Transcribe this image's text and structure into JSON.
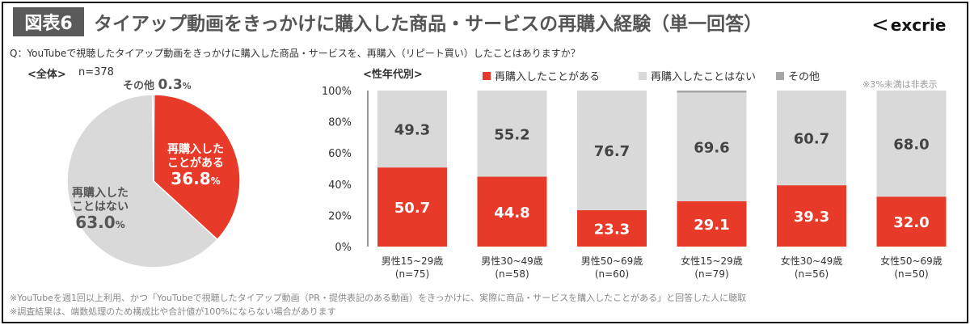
{
  "header": {
    "figure_label": "図表6",
    "title": "タイアップ動画をきっかけに購入した商品・サービスの再購入経験（単一回答）",
    "logo": "excrie"
  },
  "question": "Q：YouTubeで視聴したタイアップ動画をきっかけに購入した商品・サービスを、再購入（リピート買い）したことはありますか？",
  "colors": {
    "repurchased": "#e83a29",
    "not_repurchased": "#d9d9d9",
    "other": "#a6a6a6"
  },
  "chart_data": [
    {
      "type": "pie",
      "title": "<全体>",
      "n_label": "n=378",
      "slices": [
        {
          "name": "再購入したことがある",
          "label_lines": [
            "再購入した",
            "ことがある"
          ],
          "value": 36.8,
          "value_label": "36.8",
          "unit": "%"
        },
        {
          "name": "再購入したことはない",
          "label_lines": [
            "再購入した",
            "ことはない"
          ],
          "value": 63.0,
          "value_label": "63.0",
          "unit": "%"
        },
        {
          "name": "その他",
          "label_lines": [
            "その他"
          ],
          "value": 0.3,
          "value_label": "0.3",
          "unit": "%"
        }
      ]
    },
    {
      "type": "bar",
      "stacked": true,
      "title": "<性年代別>",
      "note": "※3%未満は非表示",
      "categories": [
        "男性15~29歳",
        "男性30~49歳",
        "男性50~69歳",
        "女性15~29歳",
        "女性30~49歳",
        "女性50~69歳"
      ],
      "category_n": [
        "(n=75)",
        "(n=58)",
        "(n=60)",
        "(n=79)",
        "(n=56)",
        "(n=50)"
      ],
      "yticks": [
        "0%",
        "20%",
        "40%",
        "60%",
        "80%",
        "100%"
      ],
      "ylim": [
        0,
        100
      ],
      "legend_position": "top",
      "series": [
        {
          "name": "再購入したことがある",
          "values": [
            50.7,
            44.8,
            23.3,
            29.1,
            39.3,
            32.0
          ]
        },
        {
          "name": "再購入したことはない",
          "values": [
            49.3,
            55.2,
            76.7,
            69.6,
            60.7,
            68.0
          ]
        },
        {
          "name": "その他",
          "values": [
            0,
            0,
            0,
            1.3,
            0,
            0
          ]
        }
      ]
    }
  ],
  "footnotes": [
    "※YouTubeを週1回以上利用、かつ「YouTubeで視聴したタイアップ動画（PR・提供表記のある動画）をきっかけに、実際に商品・サービスを購入したことがある」と回答した人に聴取",
    "※調査結果は、端数処理のため構成比や合計値が100%にならない場合があります"
  ]
}
